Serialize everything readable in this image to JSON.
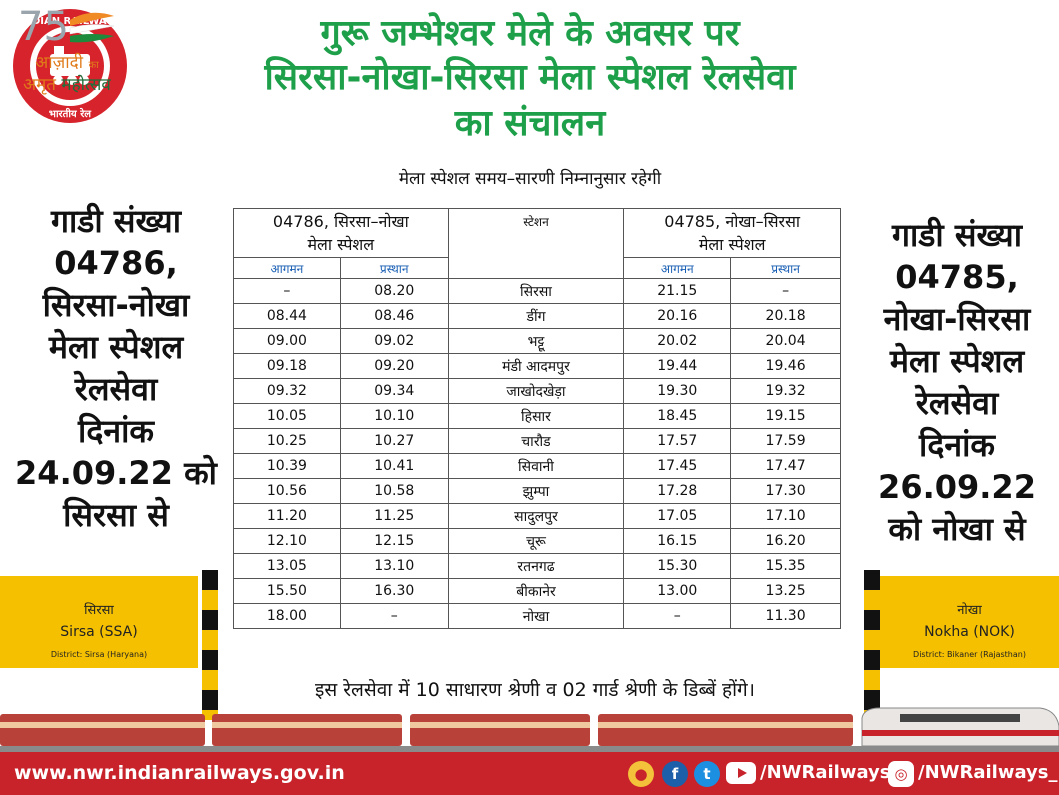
{
  "logos": {
    "railways_name": "INDIAN RAILWAYS",
    "railways_hindi": "भारतीय रेल",
    "azadi_number": "75",
    "azadi_text": "आज़ादी",
    "azadi_ka": "का",
    "amrit_text": "अमृत",
    "mahotsav_text": "महोत्सव"
  },
  "title": {
    "line1": "गुरू जम्भेश्वर मेले के अवसर पर",
    "line2": "सिरसा-नोखा-सिरसा मेला स्पेशल रेलसेवा",
    "line3": "का संचालन",
    "subtitle": "मेला स्पेशल समय–सारणी निम्नानुसार रहेगी"
  },
  "left_panel": {
    "lines": [
      "गाडी संख्या",
      "04786,",
      "सिरसा-नोखा",
      "मेला स्पेशल",
      "रेलसेवा",
      "दिनांक",
      "24.09.22 को",
      "सिरसा से"
    ]
  },
  "right_panel": {
    "lines": [
      "गाडी संख्या",
      "04785,",
      "नोखा-सिरसा",
      "मेला स्पेशल",
      "रेलसेवा",
      "दिनांक",
      "26.09.22",
      "को नोखा से"
    ]
  },
  "timetable": {
    "train_a_line1": "04786, सिरसा–नोखा",
    "train_a_line2": "मेला स्पेशल",
    "station_header": "स्टेशन",
    "train_b_line1": "04785, नोखा–सिरसा",
    "train_b_line2": "मेला स्पेशल",
    "arrival": "आगमन",
    "departure": "प्रस्थान",
    "rows": [
      {
        "a_arr": "–",
        "a_dep": "08.20",
        "station": "सिरसा",
        "b_arr": "21.15",
        "b_dep": "–"
      },
      {
        "a_arr": "08.44",
        "a_dep": "08.46",
        "station": "डींग",
        "b_arr": "20.16",
        "b_dep": "20.18"
      },
      {
        "a_arr": "09.00",
        "a_dep": "09.02",
        "station": "भट्टू",
        "b_arr": "20.02",
        "b_dep": "20.04"
      },
      {
        "a_arr": "09.18",
        "a_dep": "09.20",
        "station": "मंडी आदमपुर",
        "b_arr": "19.44",
        "b_dep": "19.46"
      },
      {
        "a_arr": "09.32",
        "a_dep": "09.34",
        "station": "जाखोदखेड़ा",
        "b_arr": "19.30",
        "b_dep": "19.32"
      },
      {
        "a_arr": "10.05",
        "a_dep": "10.10",
        "station": "हिसार",
        "b_arr": "18.45",
        "b_dep": "19.15"
      },
      {
        "a_arr": "10.25",
        "a_dep": "10.27",
        "station": "चारौड",
        "b_arr": "17.57",
        "b_dep": "17.59"
      },
      {
        "a_arr": "10.39",
        "a_dep": "10.41",
        "station": "सिवानी",
        "b_arr": "17.45",
        "b_dep": "17.47"
      },
      {
        "a_arr": "10.56",
        "a_dep": "10.58",
        "station": "झुम्पा",
        "b_arr": "17.28",
        "b_dep": "17.30"
      },
      {
        "a_arr": "11.20",
        "a_dep": "11.25",
        "station": "सादुलपुर",
        "b_arr": "17.05",
        "b_dep": "17.10"
      },
      {
        "a_arr": "12.10",
        "a_dep": "12.15",
        "station": "चूरू",
        "b_arr": "16.15",
        "b_dep": "16.20"
      },
      {
        "a_arr": "13.05",
        "a_dep": "13.10",
        "station": "रतनगढ",
        "b_arr": "15.30",
        "b_dep": "15.35"
      },
      {
        "a_arr": "15.50",
        "a_dep": "16.30",
        "station": "बीकानेर",
        "b_arr": "13.00",
        "b_dep": "13.25"
      },
      {
        "a_arr": "18.00",
        "a_dep": "–",
        "station": "नोखा",
        "b_arr": "–",
        "b_dep": "11.30"
      }
    ]
  },
  "note": "इस रेलसेवा में 10 साधारण श्रेणी व 02 गार्ड श्रेणी के डिब्बें होंगे।",
  "board_left": {
    "hindi": "सिरसा",
    "english": "Sirsa (SSA)",
    "district": "District: Sirsa (Haryana)"
  },
  "board_right": {
    "hindi": "नोखा",
    "english": "Nokha (NOK)",
    "district": "District: Bikaner (Rajasthan)"
  },
  "footer": {
    "url": "www.nwr.indianrailways.gov.in",
    "handle_1": "/NWRailways",
    "handle_2": "/NWRailways_"
  },
  "colors": {
    "title_green": "#1ea04a",
    "board_yellow": "#f5c000",
    "footer_red": "#c8222a",
    "subhead_blue": "#1a5fb4"
  }
}
